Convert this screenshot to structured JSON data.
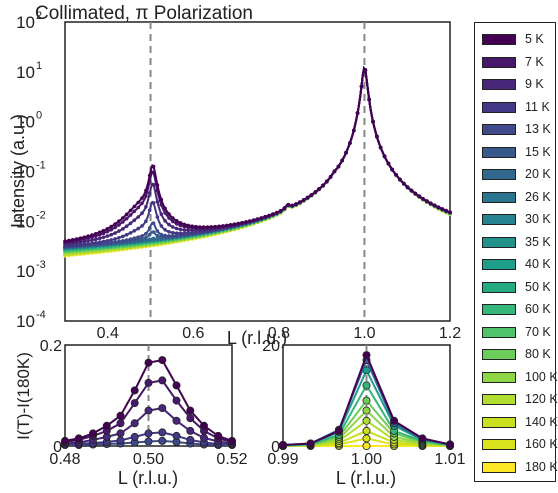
{
  "chart_data": [
    {
      "type": "line",
      "title": "Collimated, π Polarization",
      "xlabel": "L (r.l.u.)",
      "ylabel": "Intensity (a.u.)",
      "xlim": [
        0.3,
        1.2
      ],
      "ylim": [
        0.0001,
        100
      ],
      "yscale": "log",
      "xticks": [
        "0.4",
        "0.6",
        "0.8",
        "1.0",
        "1.2"
      ],
      "yticks": [
        {
          "base": "10",
          "exp": "-4"
        },
        {
          "base": "10",
          "exp": "-3"
        },
        {
          "base": "10",
          "exp": "-2"
        },
        {
          "base": "10",
          "exp": "-1"
        },
        {
          "base": "10",
          "exp": "0"
        },
        {
          "base": "10",
          "exp": "1"
        },
        {
          "base": "10",
          "exp": "2"
        }
      ],
      "vlines": [
        0.5,
        1.0
      ],
      "series": [
        {
          "name": "5 K",
          "color": "#440154",
          "charge_order_peak": 0.12,
          "background": 0.0014
        },
        {
          "name": "7 K",
          "color": "#48176a",
          "charge_order_peak": 0.09,
          "background": 0.0014
        },
        {
          "name": "9 K",
          "color": "#482778",
          "charge_order_peak": 0.05,
          "background": 0.0014
        },
        {
          "name": "11 K",
          "color": "#433885",
          "charge_order_peak": 0.02,
          "background": 0.0013
        },
        {
          "name": "13 K",
          "color": "#3e4a89",
          "charge_order_peak": 0.006,
          "background": 0.0013
        },
        {
          "name": "15 K",
          "color": "#38598c",
          "charge_order_peak": 0.003,
          "background": 0.0013
        },
        {
          "name": "20 K",
          "color": "#31688e",
          "charge_order_peak": 0.0015,
          "background": 0.0012
        },
        {
          "name": "26 K",
          "color": "#2b758e",
          "charge_order_peak": 0.0013,
          "background": 0.0012
        },
        {
          "name": "30 K",
          "color": "#26838f",
          "charge_order_peak": 0.0012,
          "background": 0.0012
        },
        {
          "name": "35 K",
          "color": "#21918c",
          "charge_order_peak": 0.0011,
          "background": 0.0011
        },
        {
          "name": "40 K",
          "color": "#1f9e89",
          "charge_order_peak": 0.0011,
          "background": 0.0011
        },
        {
          "name": "50 K",
          "color": "#25ab82",
          "charge_order_peak": 0.001,
          "background": 0.001
        },
        {
          "name": "60 K",
          "color": "#35b779",
          "charge_order_peak": 0.0009,
          "background": 0.0009
        },
        {
          "name": "70 K",
          "color": "#4ec36b",
          "charge_order_peak": 0.0008,
          "background": 0.0008
        },
        {
          "name": "80 K",
          "color": "#6ccd5a",
          "charge_order_peak": 0.0007,
          "background": 0.0007
        },
        {
          "name": "100 K",
          "color": "#8ed645",
          "charge_order_peak": 0.0006,
          "background": 0.0006
        },
        {
          "name": "120 K",
          "color": "#b0dd2f",
          "charge_order_peak": 0.0005,
          "background": 0.0005
        },
        {
          "name": "140 K",
          "color": "#c8e020",
          "charge_order_peak": 0.0004,
          "background": 0.0004
        },
        {
          "name": "160 K",
          "color": "#dbe31d",
          "charge_order_peak": 0.00035,
          "background": 0.00035
        },
        {
          "name": "180 K",
          "color": "#fde725",
          "charge_order_peak": 0.0003,
          "background": 0.0003
        }
      ],
      "legend_position": "right outside"
    },
    {
      "type": "line",
      "xlabel": "L (r.l.u.)",
      "ylabel": "I(T)-I(180K)",
      "xlim": [
        0.48,
        0.52
      ],
      "ylim": [
        0,
        0.2
      ],
      "xticks": [
        "0.48",
        "0.50",
        "0.52"
      ],
      "yticks": [
        "0",
        "0.2"
      ],
      "vlines": [
        0.5
      ],
      "x": [
        0.48,
        0.4833,
        0.4867,
        0.49,
        0.4933,
        0.4967,
        0.5,
        0.5033,
        0.5067,
        0.51,
        0.5133,
        0.5167,
        0.52
      ],
      "series": [
        {
          "name": "5 K",
          "values": [
            0.01,
            0.015,
            0.025,
            0.04,
            0.06,
            0.11,
            0.165,
            0.17,
            0.12,
            0.07,
            0.04,
            0.02,
            0.01
          ]
        },
        {
          "name": "7 K",
          "values": [
            0.008,
            0.012,
            0.02,
            0.03,
            0.045,
            0.085,
            0.125,
            0.13,
            0.09,
            0.055,
            0.03,
            0.015,
            0.008
          ]
        },
        {
          "name": "9 K",
          "values": [
            0.005,
            0.007,
            0.012,
            0.018,
            0.025,
            0.045,
            0.07,
            0.075,
            0.05,
            0.03,
            0.016,
            0.009,
            0.005
          ]
        },
        {
          "name": "11 K",
          "values": [
            0.003,
            0.004,
            0.006,
            0.008,
            0.011,
            0.018,
            0.025,
            0.027,
            0.02,
            0.012,
            0.007,
            0.004,
            0.003
          ]
        },
        {
          "name": "13 K",
          "values": [
            0.002,
            0.002,
            0.003,
            0.004,
            0.005,
            0.007,
            0.009,
            0.01,
            0.008,
            0.005,
            0.003,
            0.002,
            0.002
          ]
        }
      ]
    },
    {
      "type": "line",
      "xlabel": "L (r.l.u.)",
      "xlim": [
        0.99,
        1.01
      ],
      "ylim": [
        0,
        20
      ],
      "xticks": [
        "0.99",
        "1.00",
        "1.01"
      ],
      "yticks": [
        "0",
        "20"
      ],
      "vlines": [
        1.0
      ],
      "x": [
        0.99,
        0.9933,
        0.9967,
        1.0,
        1.0033,
        1.0067,
        1.01
      ],
      "series": [
        {
          "name": "5 K",
          "values": [
            0.2,
            0.5,
            3.0,
            18.0,
            5.0,
            1.5,
            0.3
          ]
        },
        {
          "name": "20 K",
          "values": [
            0.2,
            0.5,
            3.2,
            17.0,
            4.5,
            1.4,
            0.3
          ]
        },
        {
          "name": "40 K",
          "values": [
            0.2,
            0.4,
            2.8,
            15.0,
            4.0,
            1.2,
            0.3
          ]
        },
        {
          "name": "60 K",
          "values": [
            0.1,
            0.3,
            2.2,
            12.0,
            3.0,
            1.0,
            0.2
          ]
        },
        {
          "name": "80 K",
          "values": [
            0.1,
            0.3,
            1.8,
            9.0,
            2.5,
            0.8,
            0.2
          ]
        },
        {
          "name": "100 K",
          "values": [
            0.1,
            0.2,
            1.4,
            7.0,
            1.8,
            0.6,
            0.1
          ]
        },
        {
          "name": "120 K",
          "values": [
            0.1,
            0.2,
            1.0,
            5.0,
            1.2,
            0.4,
            0.1
          ]
        },
        {
          "name": "140 K",
          "values": [
            0.0,
            0.1,
            0.6,
            3.0,
            0.7,
            0.2,
            0.1
          ]
        },
        {
          "name": "160 K",
          "values": [
            0.0,
            0.1,
            0.3,
            1.5,
            0.3,
            0.1,
            0.0
          ]
        },
        {
          "name": "180 K",
          "values": [
            0.0,
            0.0,
            0.0,
            0.0,
            0.0,
            0.0,
            0.0
          ]
        }
      ]
    }
  ]
}
